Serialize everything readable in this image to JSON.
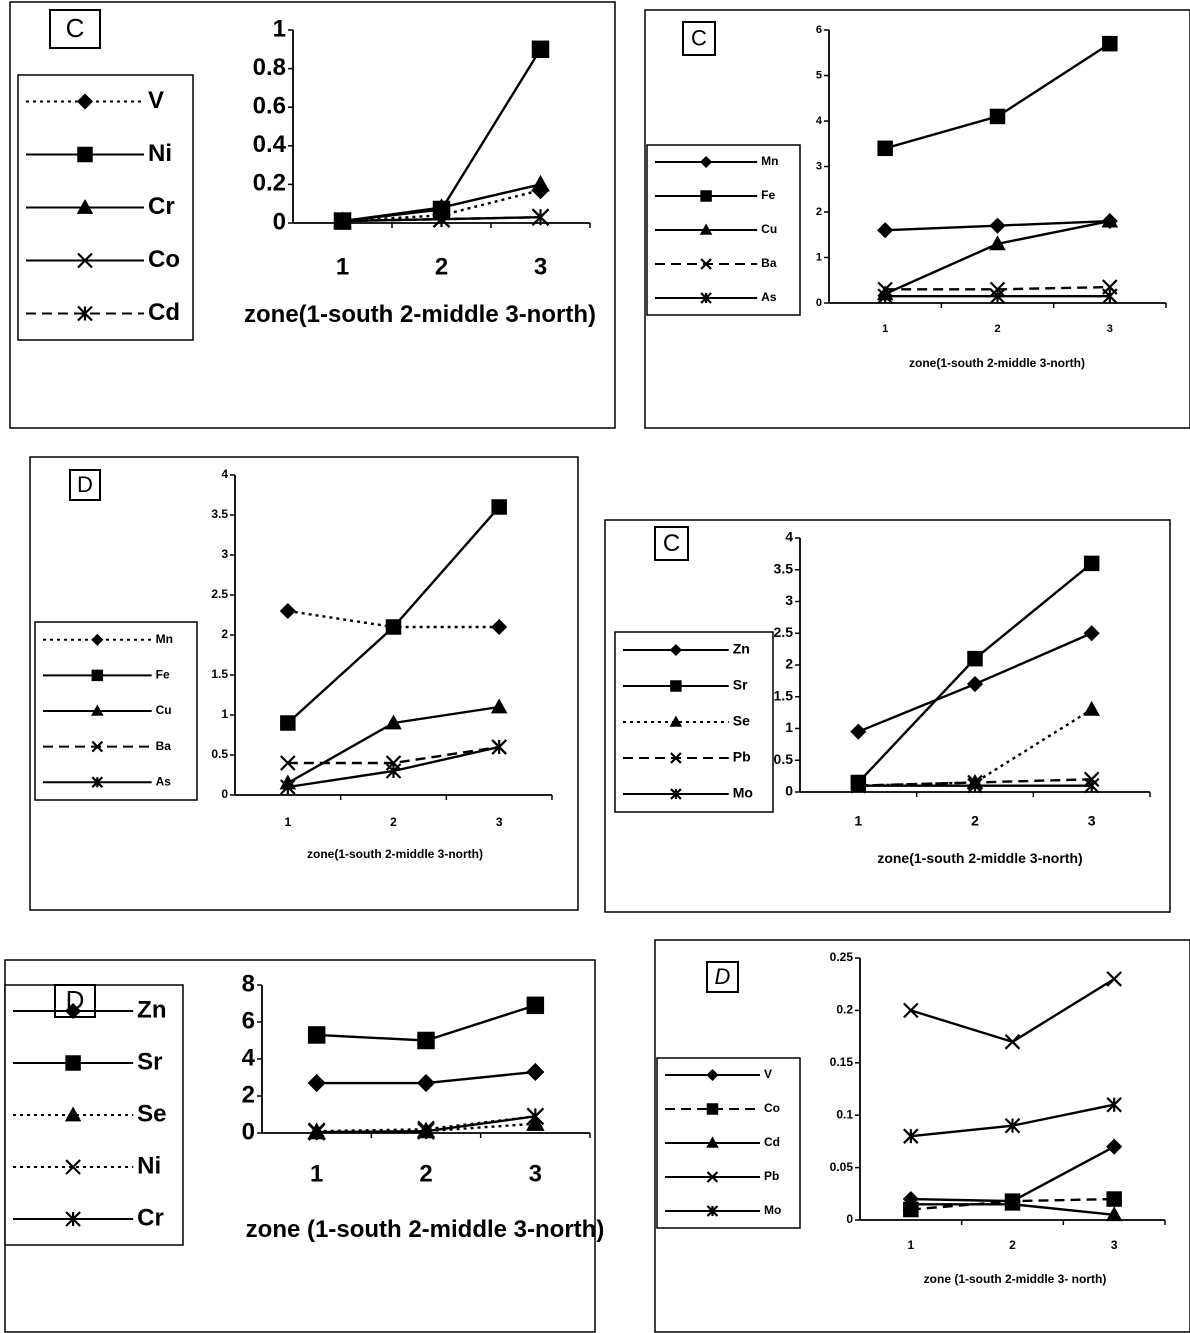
{
  "chart_data": [
    {
      "type": "line",
      "label": "C",
      "categories": [
        "1",
        "2",
        "3"
      ],
      "xlabel": "zone(1-south 2-middle 3-north)",
      "ylim": [
        0,
        1
      ],
      "yticks": [
        0,
        0.2,
        0.4,
        0.6,
        0.8,
        1
      ],
      "series": [
        {
          "name": "V",
          "color": "#000000",
          "dash": "dotted",
          "marker": "diamond",
          "values": [
            0.01,
            0.04,
            0.17
          ]
        },
        {
          "name": "Ni",
          "color": "#000000",
          "dash": "solid",
          "marker": "square",
          "values": [
            0.01,
            0.07,
            0.9
          ]
        },
        {
          "name": "Cr",
          "color": "#000000",
          "dash": "solid",
          "marker": "triangle",
          "values": [
            0.01,
            0.08,
            0.2
          ]
        },
        {
          "name": "Co",
          "color": "#000000",
          "dash": "solid",
          "marker": "x",
          "values": [
            0.01,
            0.02,
            0.03
          ]
        },
        {
          "name": "Cd",
          "color": "#000000",
          "dash": "dashed",
          "marker": "asterisk",
          "values": [
            0.01,
            0.02,
            0.03
          ]
        }
      ]
    },
    {
      "type": "line",
      "label": "C",
      "categories": [
        "1",
        "2",
        "3"
      ],
      "xlabel": "zone(1-south 2-middle 3-north)",
      "ylim": [
        0,
        6
      ],
      "yticks": [
        0,
        1,
        2,
        3,
        4,
        5,
        6
      ],
      "series": [
        {
          "name": "Mn",
          "color": "#000000",
          "dash": "solid",
          "marker": "diamond",
          "values": [
            1.6,
            1.7,
            1.8
          ]
        },
        {
          "name": "Fe",
          "color": "#000000",
          "dash": "solid",
          "marker": "square",
          "values": [
            3.4,
            4.1,
            5.7
          ]
        },
        {
          "name": "Cu",
          "color": "#000000",
          "dash": "solid",
          "marker": "triangle",
          "values": [
            0.2,
            1.3,
            1.8
          ]
        },
        {
          "name": "Ba",
          "color": "#000000",
          "dash": "dashed",
          "marker": "x",
          "values": [
            0.3,
            0.3,
            0.35
          ]
        },
        {
          "name": "As",
          "color": "#000000",
          "dash": "solid",
          "marker": "asterisk",
          "values": [
            0.15,
            0.15,
            0.15
          ]
        }
      ]
    },
    {
      "type": "line",
      "label": "D",
      "categories": [
        "1",
        "2",
        "3"
      ],
      "xlabel": "zone(1-south 2-middle 3-north)",
      "ylim": [
        0,
        4
      ],
      "yticks": [
        0,
        0.5,
        1,
        1.5,
        2,
        2.5,
        3,
        3.5,
        4
      ],
      "series": [
        {
          "name": "Mn",
          "color": "#000000",
          "dash": "dotted",
          "marker": "diamond",
          "values": [
            2.3,
            2.1,
            2.1
          ]
        },
        {
          "name": "Fe",
          "color": "#000000",
          "dash": "solid",
          "marker": "square",
          "values": [
            0.9,
            2.1,
            3.6
          ]
        },
        {
          "name": "Cu",
          "color": "#000000",
          "dash": "solid",
          "marker": "triangle",
          "values": [
            0.15,
            0.9,
            1.1
          ]
        },
        {
          "name": "Ba",
          "color": "#000000",
          "dash": "dashed",
          "marker": "x",
          "values": [
            0.4,
            0.4,
            0.6
          ]
        },
        {
          "name": "As",
          "color": "#000000",
          "dash": "solid",
          "marker": "asterisk",
          "values": [
            0.1,
            0.3,
            0.6
          ]
        }
      ]
    },
    {
      "type": "line",
      "label": "C",
      "categories": [
        "1",
        "2",
        "3"
      ],
      "xlabel": "zone(1-south 2-middle 3-north)",
      "ylim": [
        0,
        4
      ],
      "yticks": [
        0,
        0.5,
        1,
        1.5,
        2,
        2.5,
        3,
        3.5,
        4
      ],
      "series": [
        {
          "name": "Zn",
          "color": "#000000",
          "dash": "solid",
          "marker": "diamond",
          "values": [
            0.95,
            1.7,
            2.5
          ]
        },
        {
          "name": "Sr",
          "color": "#000000",
          "dash": "solid",
          "marker": "square",
          "values": [
            0.15,
            2.1,
            3.6
          ]
        },
        {
          "name": "Se",
          "color": "#000000",
          "dash": "dotted",
          "marker": "triangle",
          "values": [
            0.1,
            0.15,
            1.3
          ]
        },
        {
          "name": "Pb",
          "color": "#000000",
          "dash": "dashed",
          "marker": "x",
          "values": [
            0.1,
            0.15,
            0.2
          ]
        },
        {
          "name": "Mo",
          "color": "#000000",
          "dash": "solid",
          "marker": "asterisk",
          "values": [
            0.1,
            0.1,
            0.1
          ]
        }
      ]
    },
    {
      "type": "line",
      "label": "D",
      "categories": [
        "1",
        "2",
        "3"
      ],
      "xlabel": "zone (1-south 2-middle 3-north)",
      "ylim": [
        0,
        8
      ],
      "yticks": [
        0,
        2,
        4,
        6,
        8
      ],
      "series": [
        {
          "name": "Zn",
          "color": "#000000",
          "dash": "solid",
          "marker": "diamond",
          "values": [
            2.7,
            2.7,
            3.3
          ]
        },
        {
          "name": "Sr",
          "color": "#000000",
          "dash": "solid",
          "marker": "square",
          "values": [
            5.3,
            5.0,
            6.9
          ]
        },
        {
          "name": "Se",
          "color": "#000000",
          "dash": "dotted",
          "marker": "triangle",
          "values": [
            0.05,
            0.1,
            0.5
          ]
        },
        {
          "name": "Ni",
          "color": "#000000",
          "dash": "dotted",
          "marker": "x",
          "values": [
            0.1,
            0.2,
            0.9
          ]
        },
        {
          "name": "Cr",
          "color": "#000000",
          "dash": "solid",
          "marker": "asterisk",
          "values": [
            0.05,
            0.1,
            0.9
          ]
        }
      ]
    },
    {
      "type": "line",
      "label": "D",
      "categories": [
        "1",
        "2",
        "3"
      ],
      "xlabel": "zone (1-south 2-middle 3- north)",
      "ylim": [
        0,
        0.25
      ],
      "yticks": [
        0,
        0.05,
        0.1,
        0.15,
        0.2,
        0.25
      ],
      "series": [
        {
          "name": "V",
          "color": "#000000",
          "dash": "solid",
          "marker": "diamond",
          "values": [
            0.02,
            0.018,
            0.07
          ]
        },
        {
          "name": "Co",
          "color": "#000000",
          "dash": "dashed",
          "marker": "square",
          "values": [
            0.01,
            0.018,
            0.02
          ]
        },
        {
          "name": "Cd",
          "color": "#000000",
          "dash": "solid",
          "marker": "triangle",
          "values": [
            0.015,
            0.015,
            0.005
          ]
        },
        {
          "name": "Pb",
          "color": "#000000",
          "dash": "solid",
          "marker": "x",
          "values": [
            0.2,
            0.17,
            0.23
          ]
        },
        {
          "name": "Mo",
          "color": "#000000",
          "dash": "solid",
          "marker": "asterisk",
          "values": [
            0.08,
            0.09,
            0.11
          ]
        }
      ]
    }
  ]
}
